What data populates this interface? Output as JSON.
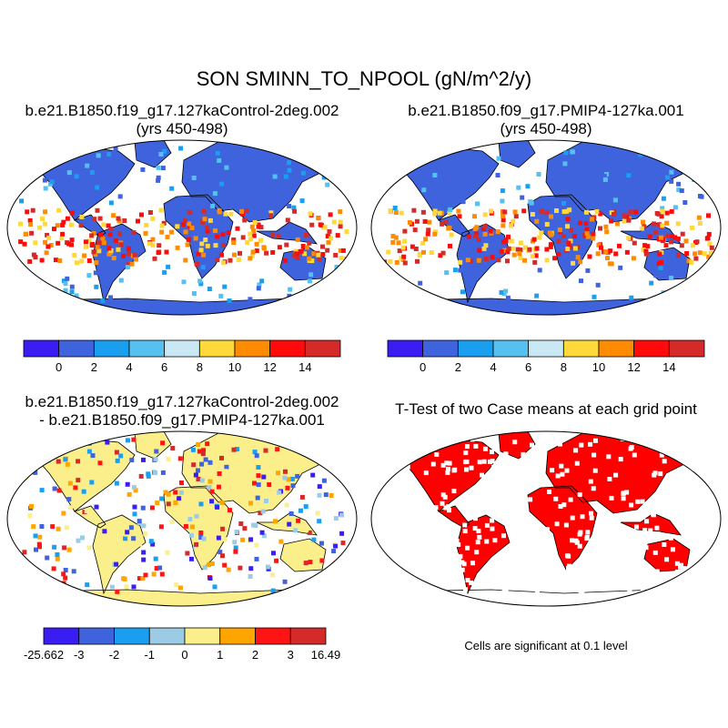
{
  "main_title": "SON SMINN_TO_NPOOL (gN/m^2/y)",
  "panels": [
    {
      "title": "b.e21.B1850.f19_g17.127kaControl-2deg.002",
      "subtitle": "(yrs 450-498)"
    },
    {
      "title": "b.e21.B1850.f09_g17.PMIP4-127ka.001",
      "subtitle": "(yrs 450-498)"
    },
    {
      "title": "b.e21.B1850.f19_g17.127kaControl-2deg.002",
      "subtitle": "- b.e21.B1850.f09_g17.PMIP4-127ka.001"
    },
    {
      "title": "T-Test of two Case means at each grid point",
      "subtitle": ""
    }
  ],
  "colorbars": {
    "abs": {
      "colors": [
        "#3a1df2",
        "#3f63dd",
        "#1a9ff0",
        "#54c1f0",
        "#c9e8f3",
        "#ffd83a",
        "#ff8c00",
        "#ff0a0a",
        "#d42a2a"
      ],
      "labels": [
        "0",
        "2",
        "4",
        "6",
        "8",
        "10",
        "12",
        "14"
      ]
    },
    "diff": {
      "colors": [
        "#3a1df2",
        "#3f63dd",
        "#1a9ff0",
        "#9ccbe6",
        "#fbef8c",
        "#ffa500",
        "#ff1414",
        "#d42a2a"
      ],
      "labels": [
        "-25.662",
        "-3",
        "-2",
        "-1",
        "0",
        "1",
        "2",
        "3",
        "16.49"
      ]
    }
  },
  "significance_note": "Cells are significant at 0.1 level",
  "colors": {
    "ocean": "#ffffff",
    "land_base_abs": "#3f63dd",
    "land_base_diff": "#fbef8c",
    "significant": "#ff0000",
    "coast": "#000000"
  }
}
